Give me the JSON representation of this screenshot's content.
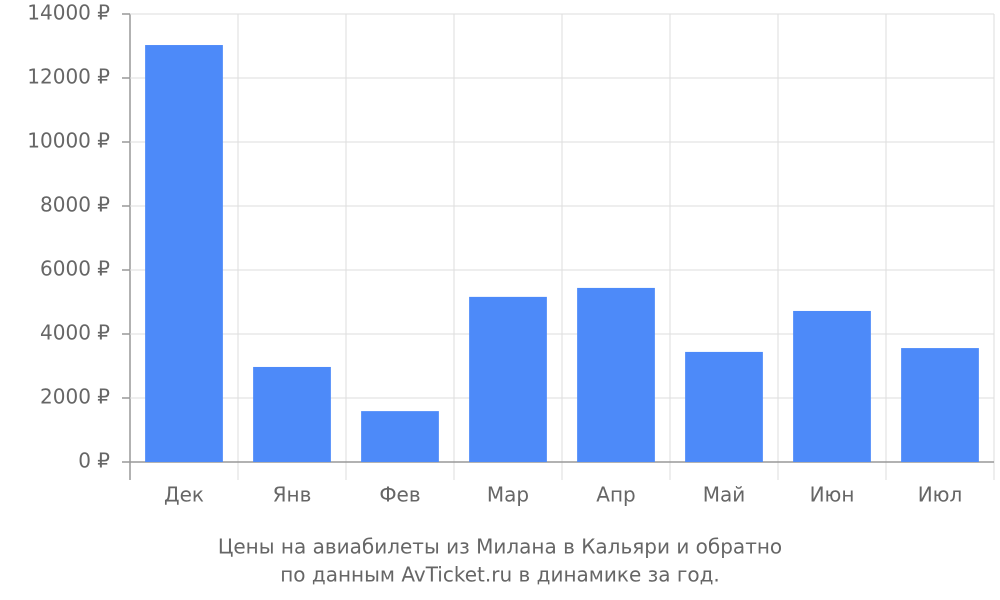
{
  "chart_data": {
    "type": "bar",
    "title": [
      "Цены на авиабилеты из Милана в Кальяри и обратно",
      "по данным AvTicket.ru в динамике за год."
    ],
    "categories": [
      "Дек",
      "Янв",
      "Фев",
      "Мар",
      "Апр",
      "Май",
      "Июн",
      "Июл"
    ],
    "values": [
      13030,
      2970,
      1590,
      5160,
      5440,
      3440,
      4720,
      3560
    ],
    "color": "#4d8af9",
    "ylim": [
      0,
      14000
    ],
    "yticks": [
      {
        "value": 0,
        "label": "0 ₽"
      },
      {
        "value": 2000,
        "label": "2000 ₽"
      },
      {
        "value": 4000,
        "label": "4000 ₽"
      },
      {
        "value": 6000,
        "label": "6000 ₽"
      },
      {
        "value": 8000,
        "label": "8000 ₽"
      },
      {
        "value": 10000,
        "label": "10000 ₽"
      },
      {
        "value": 12000,
        "label": "12000 ₽"
      },
      {
        "value": 14000,
        "label": "14000 ₽"
      }
    ],
    "grid": true
  }
}
